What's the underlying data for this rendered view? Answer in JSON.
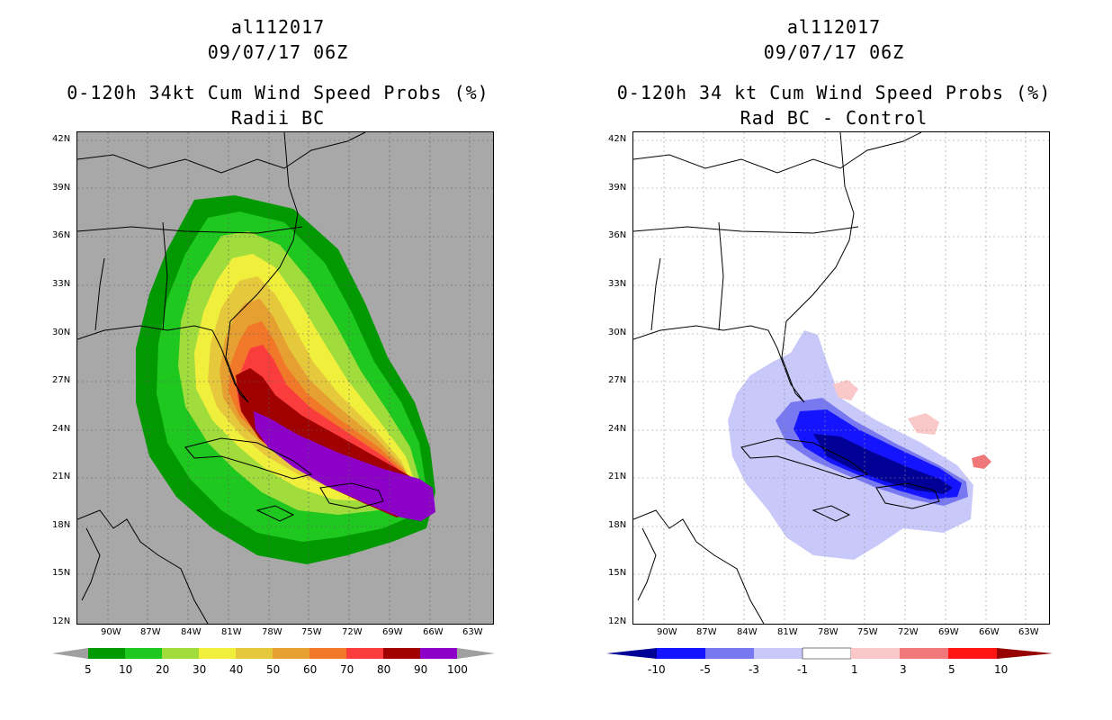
{
  "panels": [
    {
      "storm_id": "al112017",
      "datetime": "09/07/17 06Z",
      "title": "0-120h 34kt Cum Wind Speed Probs (%)",
      "subtitle": "Radii BC",
      "colorbar_labels": [
        "5",
        "10",
        "20",
        "30",
        "40",
        "50",
        "60",
        "70",
        "80",
        "90",
        "100"
      ],
      "colorbar_colors": [
        "#009a00",
        "#1ec81e",
        "#a0dc3c",
        "#f0f03c",
        "#e6c83c",
        "#e6a032",
        "#f07828",
        "#fa3c3c",
        "#a00000",
        "#8c00c8"
      ]
    },
    {
      "storm_id": "al112017",
      "datetime": "09/07/17 06Z",
      "title": "0-120h 34 kt Cum Wind Speed Probs (%)",
      "subtitle": "Rad BC - Control",
      "colorbar_labels": [
        "-10",
        "-5",
        "-3",
        "-1",
        "1",
        "3",
        "5",
        "10"
      ],
      "colorbar_colors": [
        "#000096",
        "#1414ff",
        "#7878f0",
        "#c8c8fa",
        "#ffffff",
        "#fac8c8",
        "#f07878",
        "#ff1414",
        "#960000"
      ]
    }
  ],
  "axes": {
    "lat_labels": [
      "42N",
      "39N",
      "36N",
      "33N",
      "30N",
      "27N",
      "24N",
      "21N",
      "18N",
      "15N",
      "12N"
    ],
    "lon_labels": [
      "90W",
      "87W",
      "84W",
      "81W",
      "78W",
      "75W",
      "72W",
      "69W",
      "66W",
      "63W"
    ]
  }
}
